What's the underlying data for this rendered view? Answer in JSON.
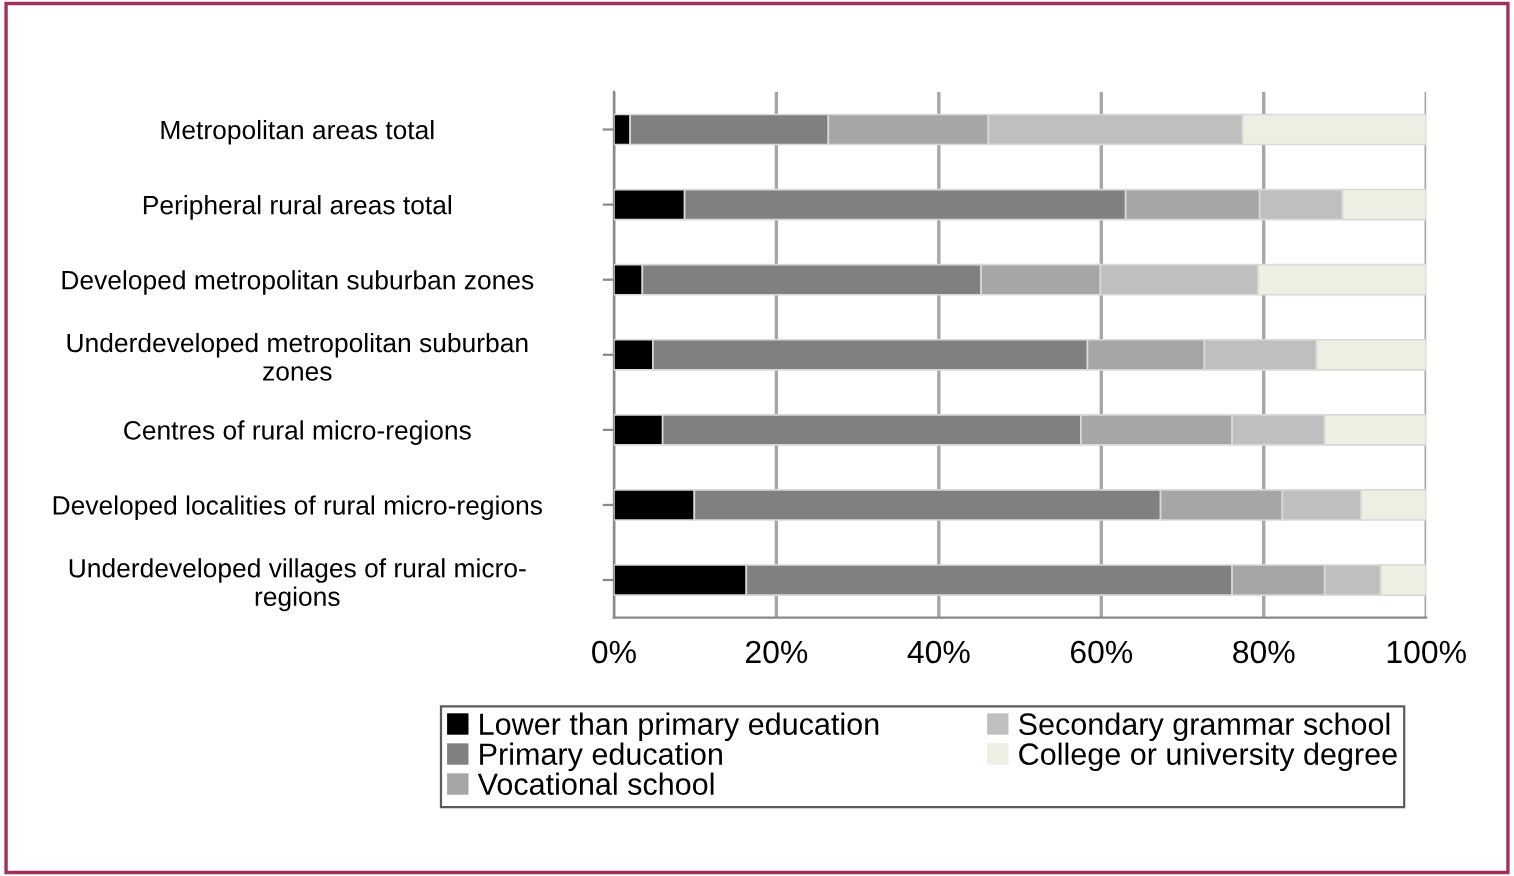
{
  "chart_data": {
    "type": "bar",
    "orientation": "horizontal",
    "stacked": true,
    "categories": [
      "Metropolitan areas total",
      "Peripheral rural areas total",
      "Developed metropolitan suburban zones",
      "Underdeveloped metropolitan suburban\nzones",
      "Centres of rural micro-regions",
      "Developed localities of rural micro-regions",
      "Underdeveloped villages of rural micro-\nregions"
    ],
    "series": [
      {
        "name": "Lower than primary education",
        "color": "#000000",
        "values": [
          2.0,
          8.7,
          3.5,
          4.8,
          6.0,
          9.9,
          16.3
        ]
      },
      {
        "name": "Primary education",
        "color": "#808080",
        "values": [
          24.4,
          54.3,
          41.7,
          53.5,
          51.5,
          57.4,
          59.8
        ]
      },
      {
        "name": "Vocational school",
        "color": "#a6a6a6",
        "values": [
          19.7,
          16.5,
          14.7,
          14.4,
          18.6,
          15.0,
          11.4
        ]
      },
      {
        "name": "Secondary grammar school",
        "color": "#bfbfbf",
        "values": [
          31.3,
          10.2,
          19.4,
          13.8,
          11.4,
          9.7,
          6.9
        ]
      },
      {
        "name": "College or university degree",
        "color": "#eeeee2",
        "values": [
          22.6,
          10.3,
          20.7,
          13.5,
          12.5,
          8.0,
          5.6
        ]
      }
    ],
    "xlim": [
      0,
      100
    ],
    "xticks": [
      {
        "value": 0,
        "label": "0%"
      },
      {
        "value": 20,
        "label": "20%"
      },
      {
        "value": 40,
        "label": "40%"
      },
      {
        "value": 60,
        "label": "60%"
      },
      {
        "value": 80,
        "label": "80%"
      },
      {
        "value": 100,
        "label": "100%"
      }
    ],
    "grid": "x",
    "legend": "bottom"
  }
}
